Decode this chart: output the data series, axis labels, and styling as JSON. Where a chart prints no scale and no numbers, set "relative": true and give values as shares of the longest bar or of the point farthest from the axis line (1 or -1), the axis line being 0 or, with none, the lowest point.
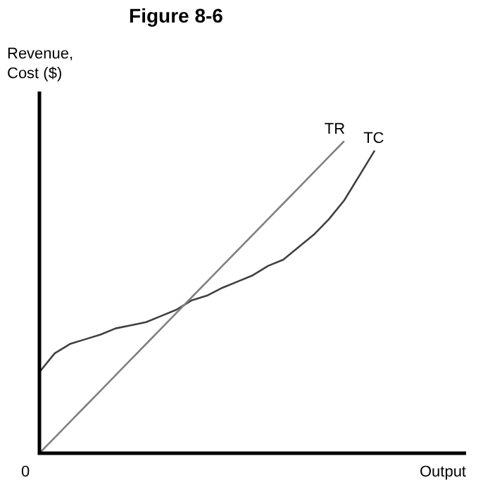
{
  "chart_data": {
    "type": "line",
    "title": "Figure 8-6",
    "xlabel": "Output",
    "ylabel": "Revenue,\nCost ($)",
    "relative": true,
    "legend": false,
    "marker": "none",
    "line_style": "solid",
    "annotations": [
      "0"
    ],
    "categories": [
      null,
      null,
      null,
      null,
      null,
      null,
      null,
      null,
      null,
      null,
      null,
      null,
      null,
      null,
      null,
      null,
      null,
      null,
      null,
      null,
      null,
      null,
      null,
      null,
      null,
      null,
      null,
      null,
      null
    ],
    "series": [
      {
        "name": "TR",
        "color": "#808080",
        "values": [
          0,
          0.05,
          0.1,
          0.15,
          0.2,
          0.25,
          0.3,
          0.35,
          0.4,
          0.45,
          0.5,
          0.55,
          0.6,
          0.65,
          0.7,
          0.75,
          0.8,
          0.85,
          0.9,
          0.95,
          1,
          null,
          null,
          null,
          null,
          null,
          null,
          null,
          null
        ]
      },
      {
        "name": "TC",
        "color": "#404040",
        "values": [
          0.26,
          0.32,
          0.35,
          0.365,
          0.38,
          0.4,
          0.41,
          0.42,
          0.44,
          0.46,
          0.49,
          0.505,
          0.53,
          0.55,
          0.57,
          0.6,
          0.62,
          0.66,
          0.7,
          0.75,
          0.81,
          0.89,
          0.97,
          null,
          null,
          null,
          null,
          null,
          null
        ]
      }
    ]
  }
}
